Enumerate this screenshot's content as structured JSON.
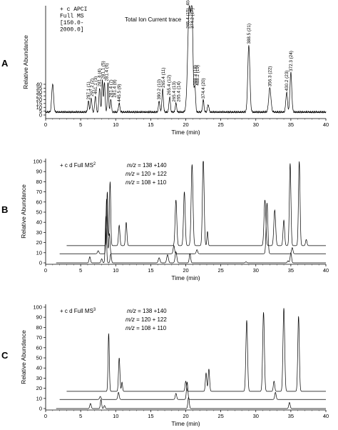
{
  "chart_data": [
    {
      "panel": "A",
      "type": "line",
      "title_lines": [
        "+ c APCI",
        "Full MS",
        "[150.0-",
        "2000.0]"
      ],
      "annotation": "Total Ion Current trace",
      "xlabel": "Time (min)",
      "ylabel": "Relative Abundance",
      "xlim": [
        0,
        40
      ],
      "ylim": [
        0,
        100
      ],
      "xticks": [
        0,
        5,
        10,
        15,
        20,
        25,
        30,
        35,
        40
      ],
      "yticks": [
        0,
        5,
        10,
        15,
        20,
        25,
        30,
        35,
        40
      ],
      "baseline": 2,
      "peaks": [
        {
          "x": 1.0,
          "y": 26,
          "w": 0.13
        },
        {
          "x": 6.1,
          "y": 10,
          "w": 0.1
        },
        {
          "x": 6.5,
          "y": 13,
          "w": 0.1
        },
        {
          "x": 7.1,
          "y": 15,
          "w": 0.1
        },
        {
          "x": 7.7,
          "y": 22,
          "w": 0.1
        },
        {
          "x": 8.1,
          "y": 29,
          "w": 0.09
        },
        {
          "x": 8.4,
          "y": 27,
          "w": 0.09
        },
        {
          "x": 8.9,
          "y": 27,
          "w": 0.09
        },
        {
          "x": 9.3,
          "y": 12,
          "w": 0.09
        },
        {
          "x": 10.5,
          "y": 8,
          "w": 0.1
        },
        {
          "x": 16.2,
          "y": 10,
          "w": 0.1
        },
        {
          "x": 16.7,
          "y": 21,
          "w": 0.1
        },
        {
          "x": 17.7,
          "y": 14,
          "w": 0.1
        },
        {
          "x": 18.6,
          "y": 8,
          "w": 0.1
        },
        {
          "x": 20.5,
          "y": 96,
          "w": 0.22
        },
        {
          "x": 20.9,
          "y": 78,
          "w": 0.14
        },
        {
          "x": 21.3,
          "y": 23,
          "w": 0.1
        },
        {
          "x": 22.5,
          "y": 11,
          "w": 0.1
        },
        {
          "x": 23.2,
          "y": 7,
          "w": 0.1
        },
        {
          "x": 29.0,
          "y": 61,
          "w": 0.15
        },
        {
          "x": 32.0,
          "y": 22,
          "w": 0.16
        },
        {
          "x": 34.4,
          "y": 18,
          "w": 0.12
        },
        {
          "x": 35.0,
          "y": 36,
          "w": 0.13
        }
      ],
      "labels": [
        {
          "x": 6.1,
          "text": "297.1 (1)"
        },
        {
          "x": 6.6,
          "text": "297.2 (2)"
        },
        {
          "x": 7.1,
          "text": "461.1 (3)"
        },
        {
          "x": 7.7,
          "text": "281.4 (4)"
        },
        {
          "x": 8.2,
          "text": "281.1 (5)"
        },
        {
          "x": 8.7,
          "text": "281.4 (6)"
        },
        {
          "x": 9.3,
          "text": "281.4 (7)"
        },
        {
          "x": 9.8,
          "text": "281.4 (8)"
        },
        {
          "x": 10.5,
          "text": "445.5 (9)"
        },
        {
          "x": 16.2,
          "text": "390.2 (10)"
        },
        {
          "x": 16.8,
          "text": "265.4 (11)"
        },
        {
          "x": 17.6,
          "text": "265.4 (12)"
        },
        {
          "x": 18.3,
          "text": "265.4 (13)"
        },
        {
          "x": 19.0,
          "text": "265.4 (14)"
        },
        {
          "x": 20.3,
          "text": "265.4 (15), 404.2 (16)"
        },
        {
          "x": 20.9,
          "text": "374.2 (17)"
        },
        {
          "x": 21.3,
          "text": "388.3 (18)"
        },
        {
          "x": 21.7,
          "text": "488.2 (19)"
        },
        {
          "x": 22.5,
          "text": "374.4 (20)"
        },
        {
          "x": 29.0,
          "text": "388.5 (21)"
        },
        {
          "x": 32.0,
          "text": "356.3 (22)"
        },
        {
          "x": 34.4,
          "text": "430.2 (23)"
        },
        {
          "x": 35.0,
          "text": "372.3 (24)"
        }
      ]
    },
    {
      "panel": "B",
      "type": "line",
      "title": "+ c d Full MS",
      "title_sup": "2",
      "xlabel": "Time (min)",
      "ylabel": "Relative Abundance",
      "xlim": [
        0,
        40
      ],
      "ylim": [
        0,
        100
      ],
      "xticks": [
        0,
        5,
        10,
        15,
        20,
        25,
        30,
        35,
        40
      ],
      "yticks": [
        0,
        10,
        20,
        30,
        40,
        50,
        60,
        70,
        80,
        90,
        100
      ],
      "series": [
        {
          "name": "m/z = 138 +140",
          "offset": 17,
          "x_start": 3,
          "peaks": [
            {
              "x": 8.8,
              "y": 53,
              "w": 0.09
            },
            {
              "x": 9.2,
              "y": 63,
              "w": 0.09
            },
            {
              "x": 10.5,
              "y": 20,
              "w": 0.1
            },
            {
              "x": 11.5,
              "y": 23,
              "w": 0.1
            },
            {
              "x": 18.6,
              "y": 45,
              "w": 0.12
            },
            {
              "x": 19.8,
              "y": 53,
              "w": 0.12
            },
            {
              "x": 20.9,
              "y": 80,
              "w": 0.13
            },
            {
              "x": 22.5,
              "y": 87,
              "w": 0.12
            },
            {
              "x": 23.1,
              "y": 14,
              "w": 0.08
            },
            {
              "x": 31.3,
              "y": 45,
              "w": 0.13
            },
            {
              "x": 32.7,
              "y": 35,
              "w": 0.13
            },
            {
              "x": 34.0,
              "y": 25,
              "w": 0.11
            },
            {
              "x": 34.9,
              "y": 81,
              "w": 0.11
            },
            {
              "x": 36.2,
              "y": 83,
              "w": 0.11
            },
            {
              "x": 37.2,
              "y": 6,
              "w": 0.1
            }
          ]
        },
        {
          "name": "m/z = 120 + 122",
          "offset": 9,
          "x_start": 2,
          "peaks": [
            {
              "x": 7.5,
              "y": 3,
              "w": 0.1
            },
            {
              "x": 8.7,
              "y": 54,
              "w": 0.09
            },
            {
              "x": 9.1,
              "y": 20,
              "w": 0.09
            },
            {
              "x": 18.3,
              "y": 8,
              "w": 0.1
            },
            {
              "x": 21.6,
              "y": 4,
              "w": 0.1
            },
            {
              "x": 31.6,
              "y": 50,
              "w": 0.12
            },
            {
              "x": 35.2,
              "y": 6,
              "w": 0.1
            }
          ]
        },
        {
          "name": "m/z = 108 + 110",
          "offset": 0,
          "x_start": 1.5,
          "peaks": [
            {
              "x": 6.3,
              "y": 6,
              "w": 0.1
            },
            {
              "x": 8.0,
              "y": 4,
              "w": 0.1
            },
            {
              "x": 8.6,
              "y": 46,
              "w": 0.09
            },
            {
              "x": 9.3,
              "y": 9,
              "w": 0.09
            },
            {
              "x": 16.2,
              "y": 5,
              "w": 0.12
            },
            {
              "x": 17.4,
              "y": 8,
              "w": 0.12
            },
            {
              "x": 18.6,
              "y": 11,
              "w": 0.12
            },
            {
              "x": 20.6,
              "y": 9,
              "w": 0.1
            },
            {
              "x": 28.6,
              "y": 1,
              "w": 0.1
            },
            {
              "x": 34.6,
              "y": 2,
              "w": 0.1
            },
            {
              "x": 35.0,
              "y": 10,
              "w": 0.1
            }
          ]
        }
      ]
    },
    {
      "panel": "C",
      "type": "line",
      "title": "+ c d Full MS",
      "title_sup": "3",
      "xlabel": "Time (min)",
      "ylabel": "Relative Abundance",
      "xlim": [
        0,
        40
      ],
      "ylim": [
        0,
        100
      ],
      "xticks": [
        0,
        5,
        10,
        15,
        20,
        25,
        30,
        35,
        40
      ],
      "yticks": [
        0,
        10,
        20,
        30,
        40,
        50,
        60,
        70,
        80,
        90,
        100
      ],
      "series": [
        {
          "name": "m/z = 138 +140",
          "offset": 17,
          "x_start": 3,
          "peaks": [
            {
              "x": 9.0,
              "y": 57,
              "w": 0.09
            },
            {
              "x": 10.5,
              "y": 33,
              "w": 0.1
            },
            {
              "x": 10.9,
              "y": 9,
              "w": 0.08
            },
            {
              "x": 20.0,
              "y": 10,
              "w": 0.1
            },
            {
              "x": 22.9,
              "y": 18,
              "w": 0.1
            },
            {
              "x": 23.3,
              "y": 22,
              "w": 0.1
            },
            {
              "x": 28.7,
              "y": 70,
              "w": 0.12
            },
            {
              "x": 31.1,
              "y": 78,
              "w": 0.12
            },
            {
              "x": 32.6,
              "y": 10,
              "w": 0.1
            },
            {
              "x": 34.0,
              "y": 82,
              "w": 0.12
            },
            {
              "x": 36.1,
              "y": 74,
              "w": 0.11
            }
          ]
        },
        {
          "name": "m/z = 120 + 122",
          "offset": 9,
          "x_start": 2,
          "peaks": [
            {
              "x": 7.8,
              "y": 3,
              "w": 0.1
            },
            {
              "x": 10.4,
              "y": 7,
              "w": 0.1
            },
            {
              "x": 18.6,
              "y": 6,
              "w": 0.1
            },
            {
              "x": 20.2,
              "y": 17,
              "w": 0.1
            },
            {
              "x": 32.8,
              "y": 7,
              "w": 0.1
            }
          ]
        },
        {
          "name": "m/z = 108 + 110",
          "offset": 0,
          "x_start": 1.5,
          "peaks": [
            {
              "x": 6.4,
              "y": 5,
              "w": 0.1
            },
            {
              "x": 7.9,
              "y": 9,
              "w": 0.09
            },
            {
              "x": 8.4,
              "y": 3,
              "w": 0.09
            },
            {
              "x": 20.4,
              "y": 11,
              "w": 0.1
            },
            {
              "x": 34.8,
              "y": 6,
              "w": 0.1
            }
          ]
        }
      ]
    }
  ]
}
